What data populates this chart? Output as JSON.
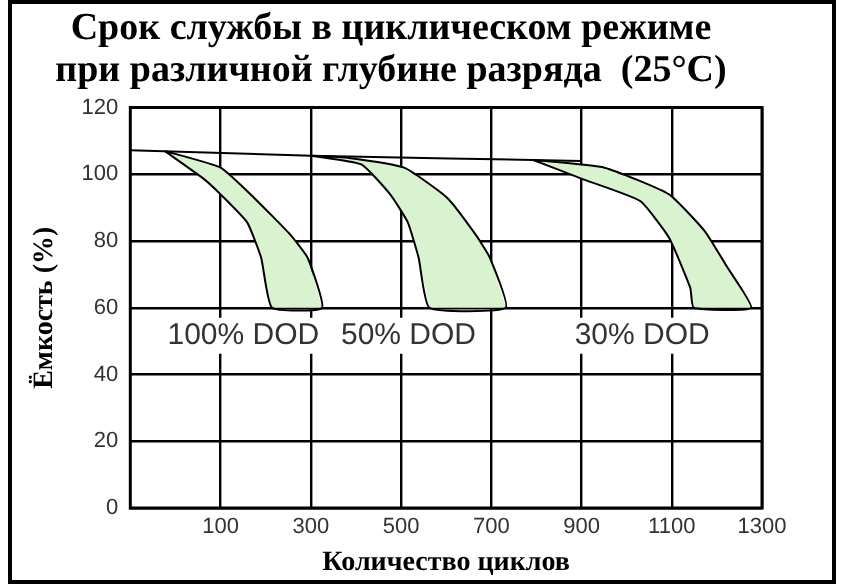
{
  "chart_data": {
    "type": "line",
    "title": "Срок службы в циклическом режиме\nпри различной глубине разряда  (25°C)",
    "xlabel": "Количество циклов",
    "ylabel": "Ёмкость (%)",
    "xlim": [
      -100,
      1300
    ],
    "xticks": [
      100,
      300,
      500,
      700,
      900,
      1100,
      1300
    ],
    "ylim": [
      0,
      120
    ],
    "yticks": [
      0,
      20,
      40,
      60,
      80,
      100,
      120
    ],
    "grid": true,
    "legend": false,
    "marker": "none",
    "series": [
      {
        "color": "#000000",
        "x": [
          -100,
          301,
          793,
          900
        ],
        "values": [
          107.2,
          105.6,
          104.3,
          104
        ]
      },
      {
        "type": "area",
        "color": "#d9f2d0",
        "x": [
          -24,
          100,
          174,
          254,
          293,
          325,
          214,
          190,
          159,
          100,
          64,
          -24
        ],
        "values": [
          107,
          102,
          93,
          82,
          75,
          60,
          60,
          75,
          85.6,
          94,
          98.5,
          107
        ]
      },
      {
        "type": "area",
        "color": "#d9f2d0",
        "x": [
          301,
          380,
          507,
          602,
          665,
          697,
          732,
          563,
          539,
          515,
          476,
          412,
          301
        ],
        "values": [
          105.6,
          105,
          102,
          93,
          82,
          75,
          60,
          60,
          75,
          85.6,
          94,
          103,
          105.6
        ]
      },
      {
        "type": "area",
        "color": "#d9f2d0",
        "x": [
          793,
          951,
          1094,
          1173,
          1221,
          1276,
          1149,
          1141,
          1094,
          1030,
          904,
          793
        ],
        "values": [
          104.3,
          102,
          94,
          83,
          72.6,
          60,
          60,
          66,
          81,
          92,
          98.5,
          104.3
        ]
      }
    ],
    "annotations": [
      "100% DOD",
      "50% DOD",
      "30% DOD"
    ]
  }
}
